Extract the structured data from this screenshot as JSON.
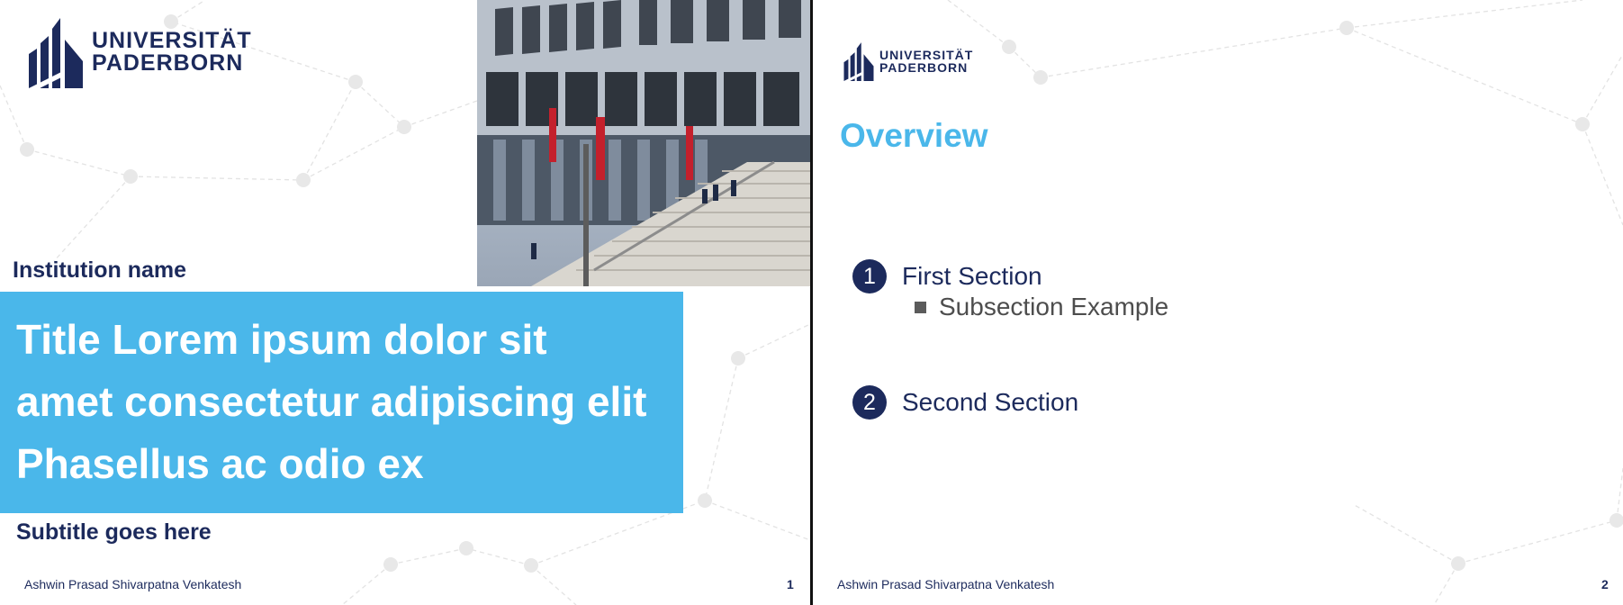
{
  "logo": {
    "line1": "UNIVERSITÄT",
    "line2": "PADERBORN"
  },
  "slide1": {
    "institution": "Institution name",
    "title_lines": [
      "Title Lorem ipsum dolor sit",
      "amet consectetur adipiscing elit",
      "Phasellus ac odio ex"
    ],
    "subtitle": "Subtitle goes here",
    "author": "Ashwin Prasad Shivarpatna Venkatesh",
    "page": "1"
  },
  "slide2": {
    "title": "Overview",
    "sections": [
      {
        "number": "1",
        "label": "First Section"
      },
      {
        "number": "2",
        "label": "Second Section"
      }
    ],
    "subsection": "Subsection Example",
    "author": "Ashwin Prasad Shivarpatna Venkatesh",
    "page": "2"
  },
  "colors": {
    "navy": "#1c2a5c",
    "accent_blue": "#4ab7ea",
    "network_gray": "#e3e3e3"
  }
}
